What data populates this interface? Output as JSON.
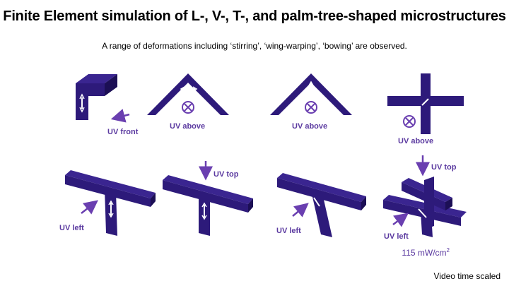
{
  "title": "Finite Element simulation of L-, V-, T-, and palm-tree-shaped microstructures",
  "subtitle": "A range of deformations including ‘stirring’, ‘wing-warping’, ‘bowing’ are observed.",
  "labels": {
    "uv_front": "UV front",
    "uv_above_1": "UV above",
    "uv_above_2": "UV above",
    "uv_above_3": "UV above",
    "uv_top_1": "UV top",
    "uv_top_2": "UV top",
    "uv_left_1": "UV left",
    "uv_left_2": "UV left",
    "uv_left_3": "UV left"
  },
  "power": {
    "value": "115 mW/cm",
    "exp": "2"
  },
  "footer": "Video time scaled",
  "colors": {
    "structure": "#2d1a7a",
    "structure_dark": "#1c0f55",
    "accent": "#6a3fb0"
  },
  "icons": [
    "arrow-icon",
    "into-page-icon",
    "deformation-arrow-icon"
  ]
}
